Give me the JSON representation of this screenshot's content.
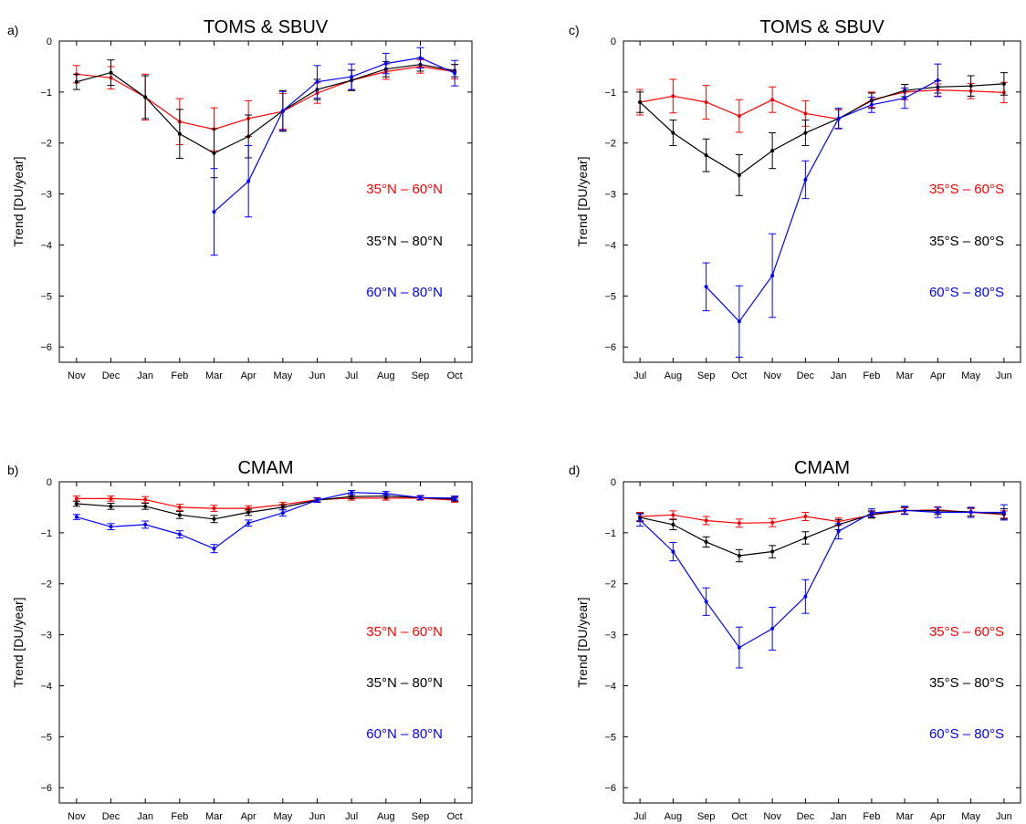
{
  "chart_data": [
    {
      "type": "line",
      "panel_label": "a)",
      "title": "TOMS & SBUV",
      "xlabel": "",
      "ylabel": "Trend [DU/year]",
      "ylim": [
        -6.3,
        0
      ],
      "yticks": [
        "0",
        "−1",
        "−2",
        "−3",
        "−4",
        "−5",
        "−6"
      ],
      "categories": [
        "Nov",
        "Dec",
        "Jan",
        "Feb",
        "Mar",
        "Apr",
        "May",
        "Jun",
        "Jul",
        "Aug",
        "Sep",
        "Oct"
      ],
      "series": [
        {
          "name": "35°N – 60°N",
          "color": "#ff0000",
          "values": [
            -0.65,
            -0.72,
            -1.1,
            -1.58,
            -1.73,
            -1.52,
            -1.38,
            -1.02,
            -0.77,
            -0.6,
            -0.5,
            -0.6
          ],
          "errors": [
            0.17,
            0.22,
            0.45,
            0.45,
            0.42,
            0.35,
            0.35,
            0.2,
            0.2,
            0.15,
            0.13,
            0.14
          ]
        },
        {
          "name": "35°N – 80°N",
          "color": "#000000",
          "values": [
            -0.8,
            -0.62,
            -1.1,
            -1.82,
            -2.2,
            -1.87,
            -1.37,
            -0.95,
            -0.77,
            -0.55,
            -0.46,
            -0.58
          ],
          "errors": [
            0.15,
            0.25,
            0.42,
            0.48,
            0.48,
            0.42,
            0.4,
            0.2,
            0.2,
            0.15,
            0.13,
            0.12
          ]
        },
        {
          "name": "60°N – 80°N",
          "color": "#0000ff",
          "values": [
            null,
            null,
            null,
            null,
            -3.35,
            -2.75,
            -1.37,
            -0.8,
            -0.7,
            -0.44,
            -0.33,
            -0.63
          ],
          "errors": [
            null,
            null,
            null,
            null,
            0.85,
            0.7,
            0.38,
            0.32,
            0.25,
            0.2,
            0.2,
            0.25
          ]
        }
      ]
    },
    {
      "type": "line",
      "panel_label": "b)",
      "title": "CMAM",
      "xlabel": "",
      "ylabel": "Trend [DU/year]",
      "ylim": [
        -6.3,
        0
      ],
      "yticks": [
        "0",
        "−1",
        "−2",
        "−3",
        "−4",
        "−5",
        "−6"
      ],
      "categories": [
        "Nov",
        "Dec",
        "Jan",
        "Feb",
        "Mar",
        "Apr",
        "May",
        "Jun",
        "Jul",
        "Aug",
        "Sep",
        "Oct"
      ],
      "series": [
        {
          "name": "35°N – 60°N",
          "color": "#ff0000",
          "values": [
            -0.33,
            -0.33,
            -0.35,
            -0.5,
            -0.52,
            -0.52,
            -0.45,
            -0.35,
            -0.32,
            -0.32,
            -0.32,
            -0.36
          ],
          "errors": [
            0.05,
            0.05,
            0.06,
            0.06,
            0.06,
            0.05,
            0.05,
            0.04,
            0.04,
            0.04,
            0.04,
            0.04
          ]
        },
        {
          "name": "35°N – 80°N",
          "color": "#000000",
          "values": [
            -0.43,
            -0.48,
            -0.48,
            -0.65,
            -0.73,
            -0.6,
            -0.5,
            -0.36,
            -0.29,
            -0.28,
            -0.31,
            -0.34
          ],
          "errors": [
            0.05,
            0.06,
            0.06,
            0.07,
            0.07,
            0.06,
            0.05,
            0.04,
            0.04,
            0.04,
            0.04,
            0.04
          ]
        },
        {
          "name": "60°N – 80°N",
          "color": "#0000ff",
          "values": [
            -0.69,
            -0.88,
            -0.84,
            -1.03,
            -1.31,
            -0.81,
            -0.61,
            -0.36,
            -0.21,
            -0.23,
            -0.31,
            -0.32
          ],
          "errors": [
            0.05,
            0.06,
            0.07,
            0.07,
            0.08,
            0.06,
            0.06,
            0.04,
            0.04,
            0.04,
            0.04,
            0.04
          ]
        }
      ]
    },
    {
      "type": "line",
      "panel_label": "c)",
      "title": "TOMS & SBUV",
      "xlabel": "",
      "ylabel": "Trend [DU/year]",
      "ylim": [
        -6.3,
        0
      ],
      "yticks": [
        "0",
        "−1",
        "−2",
        "−3",
        "−4",
        "−5",
        "−6"
      ],
      "categories": [
        "Jul",
        "Aug",
        "Sep",
        "Oct",
        "Nov",
        "Dec",
        "Jan",
        "Feb",
        "Mar",
        "Apr",
        "May",
        "Jun"
      ],
      "series": [
        {
          "name": "35°S – 60°S",
          "color": "#ff0000",
          "values": [
            -1.2,
            -1.08,
            -1.2,
            -1.47,
            -1.15,
            -1.42,
            -1.53,
            -1.15,
            -1.0,
            -0.96,
            -0.98,
            -1.01
          ],
          "errors": [
            0.25,
            0.33,
            0.33,
            0.32,
            0.25,
            0.25,
            0.18,
            0.15,
            0.15,
            0.12,
            0.15,
            0.2
          ]
        },
        {
          "name": "35°S – 80°S",
          "color": "#000000",
          "values": [
            -1.2,
            -1.8,
            -2.24,
            -2.63,
            -2.15,
            -1.8,
            -1.52,
            -1.17,
            -0.97,
            -0.9,
            -0.88,
            -0.84
          ],
          "errors": [
            0.2,
            0.25,
            0.32,
            0.4,
            0.35,
            0.25,
            0.2,
            0.15,
            0.12,
            0.12,
            0.2,
            0.22
          ]
        },
        {
          "name": "60°S – 80°S",
          "color": "#0000ff",
          "values": [
            null,
            null,
            -4.82,
            -5.5,
            -4.6,
            -2.72,
            -1.52,
            -1.25,
            -1.12,
            -0.77,
            null,
            null
          ],
          "errors": [
            null,
            null,
            0.47,
            0.7,
            0.82,
            0.37,
            0.2,
            0.15,
            0.2,
            0.32,
            null,
            null
          ]
        }
      ]
    },
    {
      "type": "line",
      "panel_label": "d)",
      "title": "CMAM",
      "xlabel": "",
      "ylabel": "Trend [DU/year]",
      "ylim": [
        -6.3,
        0
      ],
      "yticks": [
        "0",
        "−1",
        "−2",
        "−3",
        "−4",
        "−5",
        "−6"
      ],
      "categories": [
        "Jul",
        "Aug",
        "Sep",
        "Oct",
        "Nov",
        "Dec",
        "Jan",
        "Feb",
        "Mar",
        "Apr",
        "May",
        "Jun"
      ],
      "series": [
        {
          "name": "35°S – 60°S",
          "color": "#ff0000",
          "values": [
            -0.68,
            -0.65,
            -0.76,
            -0.81,
            -0.8,
            -0.68,
            -0.78,
            -0.65,
            -0.57,
            -0.55,
            -0.6,
            -0.64
          ],
          "errors": [
            0.08,
            0.08,
            0.08,
            0.08,
            0.08,
            0.08,
            0.07,
            0.06,
            0.06,
            0.06,
            0.07,
            0.07
          ]
        },
        {
          "name": "35°S – 80°S",
          "color": "#000000",
          "values": [
            -0.7,
            -0.84,
            -1.18,
            -1.45,
            -1.37,
            -1.1,
            -0.84,
            -0.64,
            -0.56,
            -0.57,
            -0.59,
            -0.63
          ],
          "errors": [
            0.08,
            0.1,
            0.1,
            0.12,
            0.12,
            0.12,
            0.1,
            0.07,
            0.07,
            0.07,
            0.08,
            0.1
          ]
        },
        {
          "name": "60°S – 80°S",
          "color": "#0000ff",
          "values": [
            -0.75,
            -1.37,
            -2.35,
            -3.25,
            -2.88,
            -2.25,
            -0.97,
            -0.61,
            -0.56,
            -0.6,
            -0.6,
            -0.6
          ],
          "errors": [
            0.12,
            0.18,
            0.27,
            0.4,
            0.42,
            0.33,
            0.15,
            0.08,
            0.08,
            0.1,
            0.1,
            0.15
          ]
        }
      ]
    }
  ]
}
